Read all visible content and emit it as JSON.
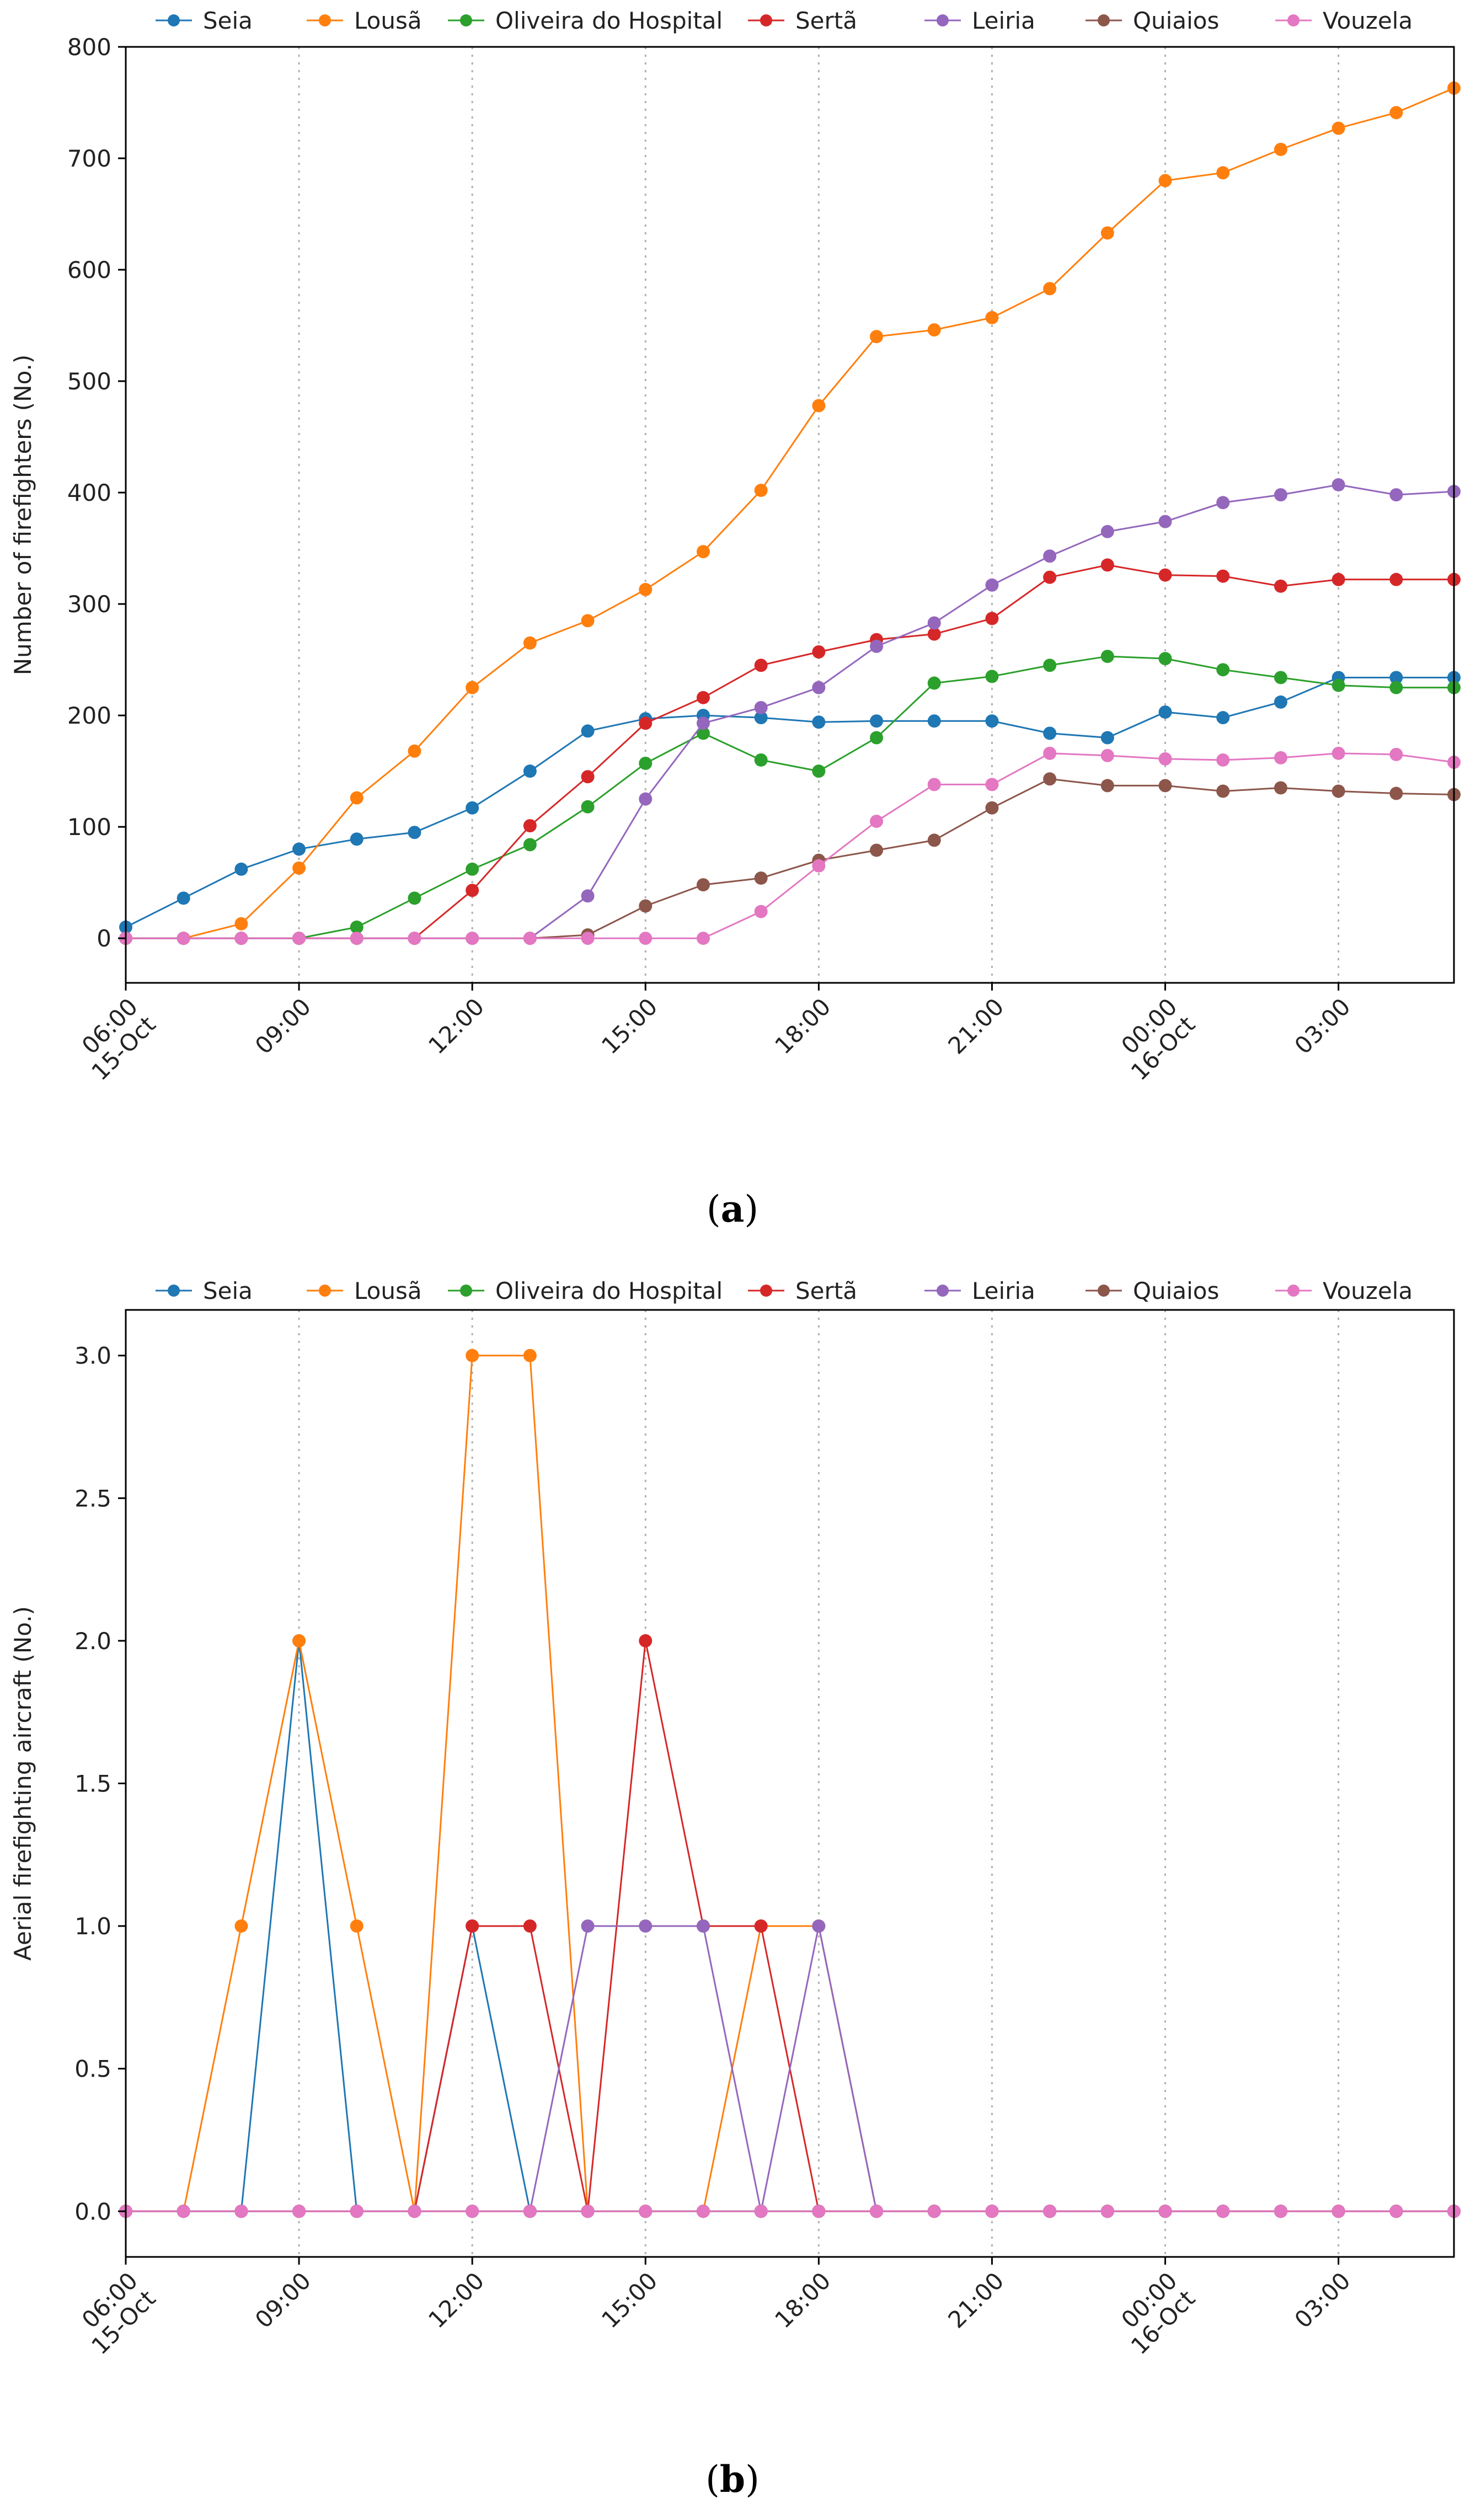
{
  "chart_data": [
    {
      "id": "a",
      "type": "line",
      "caption": "a",
      "ylabel": "Number of firefighters (No.)",
      "xlabel": "",
      "ylim": [
        -40,
        800
      ],
      "yticks": [
        0,
        100,
        200,
        300,
        400,
        500,
        600,
        700,
        800
      ],
      "ytick_labels": [
        "0",
        "100",
        "200",
        "300",
        "400",
        "500",
        "600",
        "700",
        "800"
      ],
      "x_hours": [
        0,
        1,
        2,
        3,
        4,
        5,
        6,
        7,
        8,
        9,
        10,
        11,
        12,
        13,
        14,
        15,
        16,
        17,
        18,
        19,
        20,
        21,
        22,
        23
      ],
      "xlim": [
        0,
        23
      ],
      "xticks": [
        {
          "h": 0,
          "line1": "06:00",
          "line2": "15-Oct"
        },
        {
          "h": 3,
          "line1": "09:00",
          "line2": ""
        },
        {
          "h": 6,
          "line1": "12:00",
          "line2": ""
        },
        {
          "h": 9,
          "line1": "15:00",
          "line2": ""
        },
        {
          "h": 12,
          "line1": "18:00",
          "line2": ""
        },
        {
          "h": 15,
          "line1": "21:00",
          "line2": ""
        },
        {
          "h": 18,
          "line1": "00:00",
          "line2": "16-Oct"
        },
        {
          "h": 21,
          "line1": "03:00",
          "line2": ""
        }
      ],
      "vgrid_hours": [
        3,
        6,
        9,
        12,
        15,
        18,
        21
      ],
      "series": [
        {
          "name": "Seia",
          "color": "#1f77b4",
          "values": [
            10,
            36,
            62,
            80,
            89,
            95,
            117,
            150,
            186,
            197,
            200,
            198,
            194,
            195,
            195,
            195,
            184,
            180,
            203,
            198,
            212,
            234,
            234,
            234
          ]
        },
        {
          "name": "Lousã",
          "color": "#ff7f0e",
          "values": [
            0,
            0,
            13,
            63,
            126,
            168,
            225,
            265,
            285,
            313,
            347,
            402,
            478,
            540,
            546,
            557,
            583,
            633,
            680,
            687,
            708,
            727,
            741,
            763
          ]
        },
        {
          "name": "Oliveira do Hospital",
          "color": "#2ca02c",
          "values": [
            0,
            0,
            0,
            0,
            10,
            36,
            62,
            84,
            118,
            157,
            184,
            160,
            150,
            180,
            229,
            235,
            245,
            253,
            251,
            241,
            234,
            227,
            225,
            225
          ]
        },
        {
          "name": "Sertã",
          "color": "#d62728",
          "values": [
            0,
            0,
            0,
            0,
            0,
            0,
            43,
            101,
            145,
            193,
            216,
            245,
            257,
            268,
            273,
            287,
            324,
            335,
            326,
            325,
            316,
            322,
            322,
            322
          ]
        },
        {
          "name": "Leiria",
          "color": "#9467bd",
          "values": [
            0,
            0,
            0,
            0,
            0,
            0,
            0,
            0,
            38,
            125,
            193,
            207,
            225,
            262,
            283,
            317,
            343,
            365,
            374,
            391,
            398,
            407,
            398,
            401
          ]
        },
        {
          "name": "Quiaios",
          "color": "#8c564b",
          "values": [
            0,
            0,
            0,
            0,
            0,
            0,
            0,
            0,
            3,
            29,
            48,
            54,
            70,
            79,
            88,
            117,
            143,
            137,
            137,
            132,
            135,
            132,
            130,
            129
          ]
        },
        {
          "name": "Vouzela",
          "color": "#e377c2",
          "values": [
            0,
            0,
            0,
            0,
            0,
            0,
            0,
            0,
            0,
            0,
            0,
            24,
            65,
            105,
            138,
            138,
            166,
            164,
            161,
            160,
            162,
            166,
            165,
            158
          ]
        }
      ]
    },
    {
      "id": "b",
      "type": "line",
      "caption": "b",
      "ylabel": "Aerial firefighting aircraft (No.)",
      "xlabel": "",
      "ylim": [
        -0.16,
        3.16
      ],
      "yticks": [
        0,
        0.5,
        1.0,
        1.5,
        2.0,
        2.5,
        3.0
      ],
      "ytick_labels": [
        "0.0",
        "0.5",
        "1.0",
        "1.5",
        "2.0",
        "2.5",
        "3.0"
      ],
      "x_hours": [
        0,
        1,
        2,
        3,
        4,
        5,
        6,
        7,
        8,
        9,
        10,
        11,
        12,
        13,
        14,
        15,
        16,
        17,
        18,
        19,
        20,
        21,
        22,
        23
      ],
      "xlim": [
        0,
        23
      ],
      "xticks": [
        {
          "h": 0,
          "line1": "06:00",
          "line2": "15-Oct"
        },
        {
          "h": 3,
          "line1": "09:00",
          "line2": ""
        },
        {
          "h": 6,
          "line1": "12:00",
          "line2": ""
        },
        {
          "h": 9,
          "line1": "15:00",
          "line2": ""
        },
        {
          "h": 12,
          "line1": "18:00",
          "line2": ""
        },
        {
          "h": 15,
          "line1": "21:00",
          "line2": ""
        },
        {
          "h": 18,
          "line1": "00:00",
          "line2": "16-Oct"
        },
        {
          "h": 21,
          "line1": "03:00",
          "line2": ""
        }
      ],
      "vgrid_hours": [
        3,
        6,
        9,
        12,
        15,
        18,
        21
      ],
      "series": [
        {
          "name": "Seia",
          "color": "#1f77b4",
          "values": [
            0,
            0,
            0,
            2,
            0,
            0,
            1,
            0,
            0,
            0,
            0,
            0,
            0,
            0,
            0,
            0,
            0,
            0,
            0,
            0,
            0,
            0,
            0,
            0
          ]
        },
        {
          "name": "Lousã",
          "color": "#ff7f0e",
          "values": [
            0,
            0,
            1,
            2,
            1,
            0,
            3,
            3,
            0,
            0,
            0,
            1,
            1,
            0,
            0,
            0,
            0,
            0,
            0,
            0,
            0,
            0,
            0,
            0
          ]
        },
        {
          "name": "Oliveira do Hospital",
          "color": "#2ca02c",
          "values": [
            0,
            0,
            0,
            0,
            0,
            0,
            0,
            0,
            0,
            0,
            0,
            0,
            0,
            0,
            0,
            0,
            0,
            0,
            0,
            0,
            0,
            0,
            0,
            0
          ]
        },
        {
          "name": "Sertã",
          "color": "#d62728",
          "values": [
            0,
            0,
            0,
            0,
            0,
            0,
            1,
            1,
            0,
            2,
            1,
            1,
            0,
            0,
            0,
            0,
            0,
            0,
            0,
            0,
            0,
            0,
            0,
            0
          ]
        },
        {
          "name": "Leiria",
          "color": "#9467bd",
          "values": [
            0,
            0,
            0,
            0,
            0,
            0,
            0,
            0,
            1,
            1,
            1,
            0,
            1,
            0,
            0,
            0,
            0,
            0,
            0,
            0,
            0,
            0,
            0,
            0
          ]
        },
        {
          "name": "Quiaios",
          "color": "#8c564b",
          "values": [
            0,
            0,
            0,
            0,
            0,
            0,
            0,
            0,
            0,
            0,
            0,
            0,
            0,
            0,
            0,
            0,
            0,
            0,
            0,
            0,
            0,
            0,
            0,
            0
          ]
        },
        {
          "name": "Vouzela",
          "color": "#e377c2",
          "values": [
            0,
            0,
            0,
            0,
            0,
            0,
            0,
            0,
            0,
            0,
            0,
            0,
            0,
            0,
            0,
            0,
            0,
            0,
            0,
            0,
            0,
            0,
            0,
            0
          ]
        }
      ]
    }
  ]
}
